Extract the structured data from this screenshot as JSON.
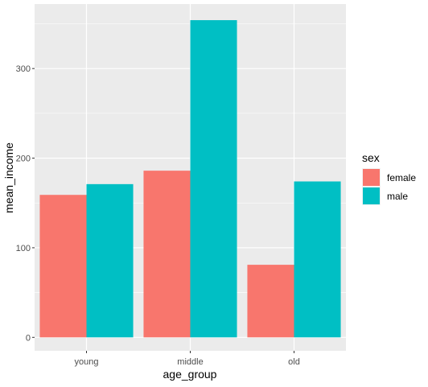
{
  "chart_data": {
    "type": "bar",
    "title": "",
    "xlabel": "age_group",
    "ylabel": "mean_income",
    "categories": [
      "young",
      "middle",
      "old"
    ],
    "series": [
      {
        "name": "female",
        "color": "#F8766D",
        "values": [
          159,
          186,
          81
        ]
      },
      {
        "name": "male",
        "color": "#00BFC4",
        "values": [
          171,
          354,
          174
        ]
      }
    ],
    "ylim": [
      -15,
      372
    ],
    "yticks": [
      0,
      100,
      200,
      300
    ],
    "grid": true,
    "legend": {
      "title": "sex",
      "position": "right"
    },
    "colors": {
      "panel_background": "#EBEBEB",
      "grid": "#FFFFFF"
    }
  }
}
